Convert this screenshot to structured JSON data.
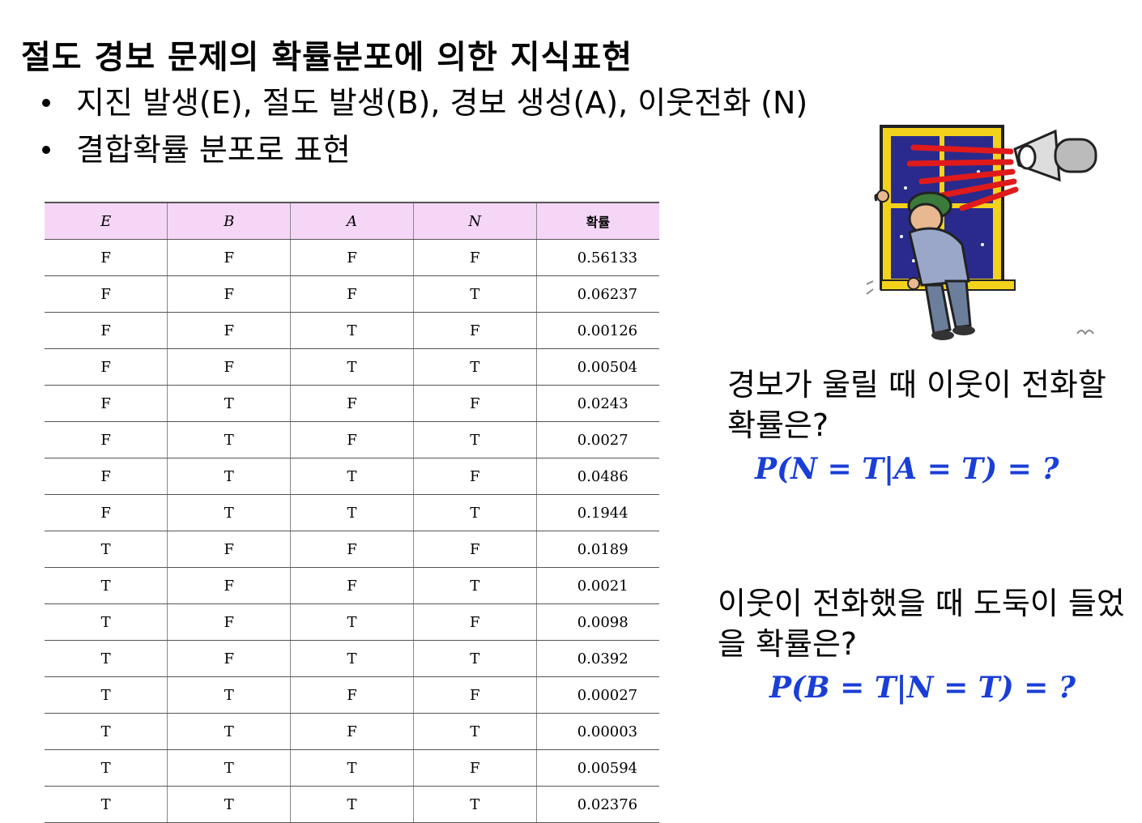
{
  "title": "절도 경보 문제의 확률분포에 의한 지식표현",
  "bullets": [
    "지진 발생(E), 절도 발생(B), 경보 생성(A), 이웃전화 (N)",
    "결합확률 분포로 표현"
  ],
  "table": {
    "headers": [
      "E",
      "B",
      "A",
      "N",
      "확률"
    ],
    "rows": [
      [
        "F",
        "F",
        "F",
        "F",
        "0.56133"
      ],
      [
        "F",
        "F",
        "F",
        "T",
        "0.06237"
      ],
      [
        "F",
        "F",
        "T",
        "F",
        "0.00126"
      ],
      [
        "F",
        "F",
        "T",
        "T",
        "0.00504"
      ],
      [
        "F",
        "T",
        "F",
        "F",
        "0.0243"
      ],
      [
        "F",
        "T",
        "F",
        "T",
        "0.0027"
      ],
      [
        "F",
        "T",
        "T",
        "F",
        "0.0486"
      ],
      [
        "F",
        "T",
        "T",
        "T",
        "0.1944"
      ],
      [
        "T",
        "F",
        "F",
        "F",
        "0.0189"
      ],
      [
        "T",
        "F",
        "F",
        "T",
        "0.0021"
      ],
      [
        "T",
        "F",
        "T",
        "F",
        "0.0098"
      ],
      [
        "T",
        "F",
        "T",
        "T",
        "0.0392"
      ],
      [
        "T",
        "T",
        "F",
        "F",
        "0.00027"
      ],
      [
        "T",
        "T",
        "F",
        "T",
        "0.00003"
      ],
      [
        "T",
        "T",
        "T",
        "F",
        "0.00594"
      ],
      [
        "T",
        "T",
        "T",
        "T",
        "0.02376"
      ]
    ]
  },
  "questions": [
    {
      "text": "경보가 울릴 때 이웃이 전화할 확률은?",
      "formula": "P(N = T|A = T) = ?"
    },
    {
      "text": "이웃이 전화했을 때 도둑이 들었을 확률은?",
      "formula": "P(B = T|N = T) = ?"
    }
  ],
  "colors": {
    "header_bg": "#f5d6f7",
    "formula": "#1a3ed6"
  },
  "icons": {
    "illustration": "burglar-window-megaphone-icon"
  }
}
